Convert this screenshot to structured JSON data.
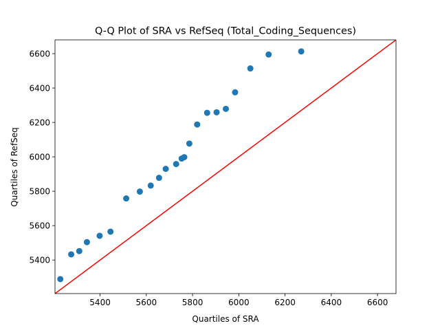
{
  "chart_data": {
    "type": "scatter",
    "title": "Q-Q Plot of SRA vs RefSeq (Total_Coding_Sequences)",
    "xlabel": "Quartiles of SRA",
    "ylabel": "Quartiles of RefSeq",
    "xlim": [
      5205,
      6680
    ],
    "ylim": [
      5205,
      6680
    ],
    "xticks": [
      5400,
      5600,
      5800,
      6000,
      6200,
      6400,
      6600
    ],
    "yticks": [
      5400,
      5600,
      5800,
      6000,
      6200,
      6400,
      6600
    ],
    "grid": false,
    "point_color": "#1f77b4",
    "reference_line": {
      "from": [
        5205,
        5205
      ],
      "to": [
        6680,
        6680
      ],
      "color": "#ff0000"
    },
    "points": [
      {
        "x": 5228,
        "y": 5289
      },
      {
        "x": 5275,
        "y": 5433
      },
      {
        "x": 5310,
        "y": 5452
      },
      {
        "x": 5343,
        "y": 5504
      },
      {
        "x": 5398,
        "y": 5541
      },
      {
        "x": 5445,
        "y": 5565
      },
      {
        "x": 5513,
        "y": 5758
      },
      {
        "x": 5572,
        "y": 5798
      },
      {
        "x": 5619,
        "y": 5833
      },
      {
        "x": 5655,
        "y": 5878
      },
      {
        "x": 5684,
        "y": 5930
      },
      {
        "x": 5729,
        "y": 5958
      },
      {
        "x": 5753,
        "y": 5990
      },
      {
        "x": 5764,
        "y": 5998
      },
      {
        "x": 5786,
        "y": 6077
      },
      {
        "x": 5820,
        "y": 6188
      },
      {
        "x": 5863,
        "y": 6256
      },
      {
        "x": 5904,
        "y": 6259
      },
      {
        "x": 5944,
        "y": 6279
      },
      {
        "x": 5984,
        "y": 6375
      },
      {
        "x": 6050,
        "y": 6514
      },
      {
        "x": 6129,
        "y": 6595
      },
      {
        "x": 6270,
        "y": 6613
      }
    ]
  }
}
